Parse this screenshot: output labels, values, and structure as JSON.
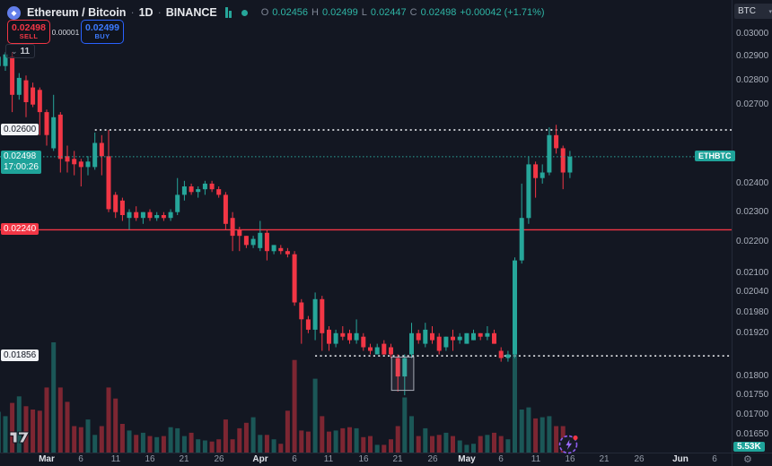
{
  "topbar": {
    "symbol_title": "Ethereum / Bitcoin",
    "separator": "·",
    "interval": "1D",
    "exchange": "BINANCE",
    "ohlc": {
      "o_label": "O",
      "o": "0.02456",
      "h_label": "H",
      "h": "0.02499",
      "l_label": "L",
      "l": "0.02447",
      "c_label": "C",
      "c": "0.02498",
      "change": "+0.00042 (+1.71%)"
    }
  },
  "trade_panel": {
    "sell_price": "0.02498",
    "sell_label": "SELL",
    "spread": "0.00001",
    "buy_price": "0.02499",
    "buy_label": "BUY"
  },
  "legend": {
    "indicator_count": "11"
  },
  "price_scale": {
    "currency": "BTC",
    "ticks": [
      {
        "label": "0.03000",
        "value": 0.03
      },
      {
        "label": "0.02900",
        "value": 0.029
      },
      {
        "label": "0.02800",
        "value": 0.028
      },
      {
        "label": "0.02700",
        "value": 0.027
      },
      {
        "label": "0.02400",
        "value": 0.024
      },
      {
        "label": "0.02300",
        "value": 0.023
      },
      {
        "label": "0.02200",
        "value": 0.022
      },
      {
        "label": "0.02100",
        "value": 0.021
      },
      {
        "label": "0.02040",
        "value": 0.0204
      },
      {
        "label": "0.01980",
        "value": 0.0198
      },
      {
        "label": "0.01920",
        "value": 0.0192
      },
      {
        "label": "0.01800",
        "value": 0.018
      },
      {
        "label": "0.01750",
        "value": 0.0175
      },
      {
        "label": "0.01700",
        "value": 0.017
      },
      {
        "label": "0.01650",
        "value": 0.0165
      }
    ]
  },
  "time_scale": {
    "labels": [
      {
        "text": "Mar",
        "index": 7,
        "month": true
      },
      {
        "text": "6",
        "index": 12,
        "month": false
      },
      {
        "text": "11",
        "index": 17,
        "month": false
      },
      {
        "text": "16",
        "index": 22,
        "month": false
      },
      {
        "text": "21",
        "index": 27,
        "month": false
      },
      {
        "text": "26",
        "index": 32,
        "month": false
      },
      {
        "text": "Apr",
        "index": 38,
        "month": true
      },
      {
        "text": "6",
        "index": 43,
        "month": false
      },
      {
        "text": "11",
        "index": 48,
        "month": false
      },
      {
        "text": "16",
        "index": 53,
        "month": false
      },
      {
        "text": "21",
        "index": 58,
        "month": false
      },
      {
        "text": "26",
        "index": 63,
        "month": false
      },
      {
        "text": "May",
        "index": 68,
        "month": true
      },
      {
        "text": "6",
        "index": 73,
        "month": false
      },
      {
        "text": "11",
        "index": 78,
        "month": false
      },
      {
        "text": "16",
        "index": 83,
        "month": false
      },
      {
        "text": "21",
        "index": 88,
        "month": false
      },
      {
        "text": "26",
        "index": 93,
        "month": false
      },
      {
        "text": "Jun",
        "index": 99,
        "month": true
      },
      {
        "text": "6",
        "index": 104,
        "month": false
      }
    ]
  },
  "price_line": {
    "symbol_badge": "ETHBTC",
    "price": "0.02498",
    "countdown": "17:00:26",
    "value": 0.02498
  },
  "levels": {
    "upper_dotted": {
      "label": "0.02600",
      "value": 0.026,
      "from_index": 14
    },
    "lower_dotted": {
      "label": "0.01856",
      "value": 0.01856,
      "from_index": 46
    },
    "red_line": {
      "label": "0.02240",
      "value": 0.0224
    }
  },
  "volume_badge": {
    "last_volume": "5.53K"
  },
  "selection_box": {
    "start_index": 58,
    "end_index": 59,
    "top_price": 0.01853,
    "bottom_price": 0.01763
  },
  "icons": {
    "chevron_down": "⌄",
    "caret_down": "▾",
    "gear": "⚙",
    "bolt": "⚡",
    "eth_diamond": "◆"
  },
  "colors": {
    "up": "#26a69a",
    "down": "#f23645",
    "buy_blue": "#2962ff",
    "dotted_white": "#d8dade",
    "current_price_teal": "#2aa79b"
  },
  "chart_data": {
    "type": "candlestick",
    "symbol": "ETHBTC",
    "exchange": "BINANCE",
    "interval": "1D",
    "price_scale": "log",
    "first_candle_date": "Feb 22",
    "last_candle_date": "May 16",
    "columns": [
      "open",
      "high",
      "low",
      "close",
      "relative_volume"
    ],
    "candles": [
      [
        0.0286,
        0.0292,
        0.0283,
        0.029,
        0.37
      ],
      [
        0.0286,
        0.0292,
        0.0284,
        0.0291,
        0.33
      ],
      [
        0.029,
        0.0292,
        0.0267,
        0.0274,
        0.45
      ],
      [
        0.0274,
        0.0283,
        0.0272,
        0.0281,
        0.51
      ],
      [
        0.028,
        0.0282,
        0.0265,
        0.0271,
        0.42
      ],
      [
        0.0277,
        0.0279,
        0.0269,
        0.027,
        0.39
      ],
      [
        0.0276,
        0.0277,
        0.0258,
        0.0267,
        0.38
      ],
      [
        0.0267,
        0.0268,
        0.0254,
        0.0258,
        0.59
      ],
      [
        0.0253,
        0.0274,
        0.0252,
        0.0265,
        1.0
      ],
      [
        0.0266,
        0.0267,
        0.0244,
        0.0249,
        0.59
      ],
      [
        0.025,
        0.0254,
        0.0244,
        0.0248,
        0.46
      ],
      [
        0.0249,
        0.0252,
        0.0243,
        0.0247,
        0.24
      ],
      [
        0.0248,
        0.0249,
        0.0239,
        0.0246,
        0.23
      ],
      [
        0.0246,
        0.025,
        0.0243,
        0.0248,
        0.3
      ],
      [
        0.0246,
        0.0259,
        0.0245,
        0.0255,
        0.16
      ],
      [
        0.0255,
        0.0258,
        0.0243,
        0.025,
        0.24
      ],
      [
        0.025,
        0.026,
        0.023,
        0.0231,
        0.59
      ],
      [
        0.0236,
        0.0237,
        0.0228,
        0.023,
        0.49
      ],
      [
        0.0234,
        0.0235,
        0.0227,
        0.0229,
        0.26
      ],
      [
        0.0228,
        0.0231,
        0.0224,
        0.023,
        0.2
      ],
      [
        0.023,
        0.0232,
        0.0227,
        0.0228,
        0.16
      ],
      [
        0.0228,
        0.023,
        0.0226,
        0.023,
        0.18
      ],
      [
        0.023,
        0.0231,
        0.0227,
        0.0228,
        0.15
      ],
      [
        0.0228,
        0.023,
        0.0227,
        0.0229,
        0.14
      ],
      [
        0.0229,
        0.023,
        0.0227,
        0.0228,
        0.15
      ],
      [
        0.0228,
        0.0231,
        0.0227,
        0.023,
        0.23
      ],
      [
        0.023,
        0.0242,
        0.0229,
        0.0236,
        0.22
      ],
      [
        0.0236,
        0.0241,
        0.0234,
        0.0239,
        0.15
      ],
      [
        0.0239,
        0.024,
        0.0236,
        0.0237,
        0.18
      ],
      [
        0.0237,
        0.0239,
        0.0235,
        0.0238,
        0.12
      ],
      [
        0.0238,
        0.0241,
        0.0236,
        0.024,
        0.11
      ],
      [
        0.024,
        0.0241,
        0.0237,
        0.0238,
        0.1
      ],
      [
        0.0238,
        0.0239,
        0.0235,
        0.0236,
        0.12
      ],
      [
        0.0236,
        0.0237,
        0.0224,
        0.0226,
        0.3
      ],
      [
        0.0228,
        0.023,
        0.0217,
        0.0222,
        0.12
      ],
      [
        0.0224,
        0.0225,
        0.0217,
        0.0222,
        0.22
      ],
      [
        0.0222,
        0.0222,
        0.0218,
        0.0219,
        0.27
      ],
      [
        0.0219,
        0.0222,
        0.0218,
        0.0221,
        0.32
      ],
      [
        0.0218,
        0.0227,
        0.0217,
        0.0223,
        0.16
      ],
      [
        0.0223,
        0.0224,
        0.0214,
        0.0217,
        0.16
      ],
      [
        0.0217,
        0.0219,
        0.0216,
        0.0219,
        0.12
      ],
      [
        0.0218,
        0.0219,
        0.0216,
        0.0217,
        0.08
      ],
      [
        0.0217,
        0.0218,
        0.0215,
        0.0216,
        0.38
      ],
      [
        0.0216,
        0.0217,
        0.02,
        0.0201,
        0.84
      ],
      [
        0.0201,
        0.0202,
        0.0189,
        0.0196,
        0.2
      ],
      [
        0.0196,
        0.0197,
        0.0192,
        0.0193,
        0.19
      ],
      [
        0.0193,
        0.0204,
        0.019,
        0.0202,
        0.67
      ],
      [
        0.0202,
        0.0203,
        0.0187,
        0.0192,
        0.33
      ],
      [
        0.0193,
        0.0194,
        0.0187,
        0.0189,
        0.19
      ],
      [
        0.0189,
        0.0193,
        0.0188,
        0.0192,
        0.2
      ],
      [
        0.0192,
        0.0194,
        0.019,
        0.0191,
        0.22
      ],
      [
        0.0192,
        0.0193,
        0.0189,
        0.019,
        0.23
      ],
      [
        0.019,
        0.0196,
        0.0189,
        0.0192,
        0.22
      ],
      [
        0.0191,
        0.0192,
        0.0187,
        0.0188,
        0.14
      ],
      [
        0.0188,
        0.0189,
        0.0186,
        0.0187,
        0.15
      ],
      [
        0.0186,
        0.0189,
        0.0186,
        0.0188,
        0.07
      ],
      [
        0.0189,
        0.019,
        0.0186,
        0.0186,
        0.07
      ],
      [
        0.0188,
        0.0189,
        0.0185,
        0.0186,
        0.12
      ],
      [
        0.0185,
        0.0186,
        0.0176,
        0.018,
        0.24
      ],
      [
        0.018,
        0.0186,
        0.0175,
        0.0185,
        0.5
      ],
      [
        0.0186,
        0.0195,
        0.0185,
        0.0192,
        0.33
      ],
      [
        0.0192,
        0.0193,
        0.0189,
        0.019,
        0.15
      ],
      [
        0.0189,
        0.0195,
        0.0188,
        0.0193,
        0.22
      ],
      [
        0.0192,
        0.0194,
        0.0189,
        0.019,
        0.15
      ],
      [
        0.0191,
        0.0192,
        0.0186,
        0.0187,
        0.16
      ],
      [
        0.0188,
        0.0191,
        0.0187,
        0.0191,
        0.18
      ],
      [
        0.0191,
        0.0193,
        0.0187,
        0.019,
        0.15
      ],
      [
        0.019,
        0.0192,
        0.0189,
        0.0191,
        0.11
      ],
      [
        0.0189,
        0.0192,
        0.0189,
        0.0192,
        0.07
      ],
      [
        0.019,
        0.0193,
        0.019,
        0.0192,
        0.08
      ],
      [
        0.0192,
        0.0192,
        0.019,
        0.0191,
        0.15
      ],
      [
        0.0191,
        0.0194,
        0.019,
        0.0192,
        0.16
      ],
      [
        0.0192,
        0.0193,
        0.0189,
        0.0189,
        0.18
      ],
      [
        0.0187,
        0.0188,
        0.0184,
        0.0185,
        0.15
      ],
      [
        0.0185,
        0.0187,
        0.0184,
        0.0186,
        0.12
      ],
      [
        0.0186,
        0.0215,
        0.0185,
        0.0214,
        0.93
      ],
      [
        0.0214,
        0.024,
        0.0213,
        0.0228,
        0.39
      ],
      [
        0.0228,
        0.025,
        0.0226,
        0.0247,
        0.41
      ],
      [
        0.0247,
        0.0248,
        0.0235,
        0.0242,
        0.31
      ],
      [
        0.0242,
        0.0247,
        0.024,
        0.0244,
        0.32
      ],
      [
        0.0244,
        0.0261,
        0.0243,
        0.0258,
        0.33
      ],
      [
        0.0258,
        0.0262,
        0.0251,
        0.0253,
        0.24
      ],
      [
        0.0253,
        0.0254,
        0.0238,
        0.0244,
        0.24
      ],
      [
        0.0244,
        0.0252,
        0.0242,
        0.02498,
        0.1
      ]
    ]
  }
}
